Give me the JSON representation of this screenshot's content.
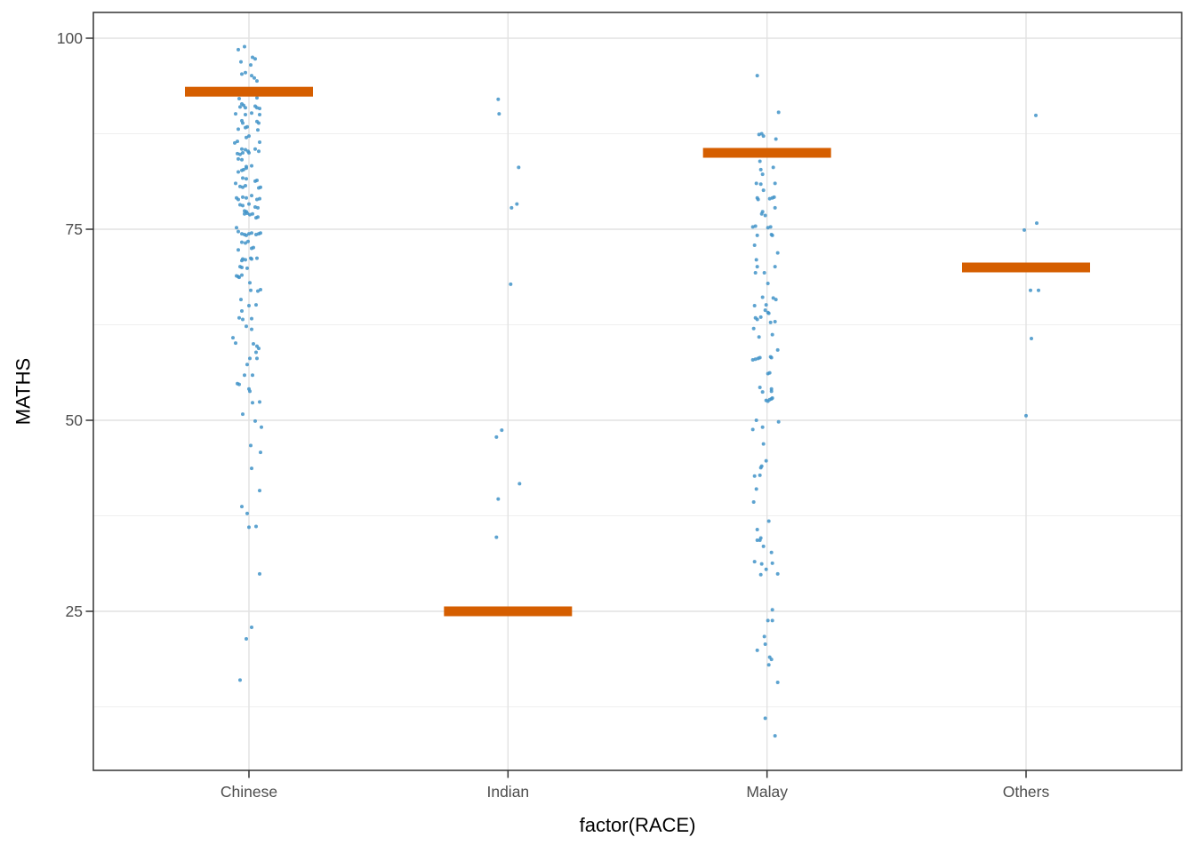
{
  "chart_data": {
    "type": "scatter",
    "title": "",
    "xlabel": "factor(RACE)",
    "ylabel": "MATHS",
    "categories": [
      "Chinese",
      "Indian",
      "Malay",
      "Others"
    ],
    "y_ticks": [
      25,
      50,
      75,
      100
    ],
    "y_minor_gridlines": [
      12.5,
      37.5,
      62.5,
      87.5
    ],
    "ylim": [
      4.2,
      103.4
    ],
    "grid": true,
    "legend_position": "none",
    "colors": {
      "point": "#4193C8",
      "crossbar": "#D55E00",
      "panel_border": "#333333",
      "tick_mark": "#333333",
      "tick_label": "#4D4D4D",
      "grid_major": "#E2E2E2",
      "grid_minor": "#EFEFEF",
      "background": "#FFFFFF"
    },
    "crossbars": [
      {
        "category": "Chinese",
        "value": 93
      },
      {
        "category": "Indian",
        "value": 25
      },
      {
        "category": "Malay",
        "value": 85
      },
      {
        "category": "Others",
        "value": 70
      }
    ],
    "series": [
      {
        "name": "Chinese",
        "points": [
          [
            -12,
            98.5
          ],
          [
            -5,
            98.9
          ],
          [
            -9,
            96.9
          ],
          [
            4,
            97.5
          ],
          [
            7,
            97.3
          ],
          [
            2,
            96.5
          ],
          [
            -8,
            95.3
          ],
          [
            -4,
            95.5
          ],
          [
            3,
            95.1
          ],
          [
            9,
            94.4
          ],
          [
            6,
            94.8
          ],
          [
            -11,
            92.1
          ],
          [
            9,
            92.2
          ],
          [
            -8,
            91.4
          ],
          [
            -6,
            91.2
          ],
          [
            -10,
            91.0
          ],
          [
            -4,
            90.9
          ],
          [
            7,
            91.1
          ],
          [
            9,
            90.9
          ],
          [
            12,
            90.8
          ],
          [
            -15,
            90.1
          ],
          [
            -4,
            90.0
          ],
          [
            3,
            90.2
          ],
          [
            12,
            90.0
          ],
          [
            -8,
            89.2
          ],
          [
            -7,
            88.9
          ],
          [
            9,
            89.1
          ],
          [
            11,
            88.9
          ],
          [
            -12,
            88.1
          ],
          [
            -4,
            88.3
          ],
          [
            -2,
            88.4
          ],
          [
            10,
            88.0
          ],
          [
            -3,
            87.0
          ],
          [
            0,
            87.2
          ],
          [
            12,
            86.4
          ],
          [
            -16,
            86.3
          ],
          [
            -13,
            86.5
          ],
          [
            -8,
            85.5
          ],
          [
            -4,
            85.4
          ],
          [
            -1,
            85.2
          ],
          [
            -7,
            85.0
          ],
          [
            7,
            85.5
          ],
          [
            11,
            85.2
          ],
          [
            -13,
            84.9
          ],
          [
            -10,
            84.8
          ],
          [
            0,
            85.0
          ],
          [
            -12,
            84.2
          ],
          [
            -8,
            84.1
          ],
          [
            -3,
            83.2
          ],
          [
            3,
            83.3
          ],
          [
            -3,
            83.0
          ],
          [
            -8,
            82.7
          ],
          [
            -6,
            82.8
          ],
          [
            -12,
            82.5
          ],
          [
            -7,
            81.7
          ],
          [
            -3,
            81.6
          ],
          [
            7,
            81.3
          ],
          [
            9,
            81.4
          ],
          [
            -15,
            81.0
          ],
          [
            -10,
            80.6
          ],
          [
            -7,
            80.5
          ],
          [
            -4,
            80.7
          ],
          [
            11,
            80.4
          ],
          [
            13,
            80.5
          ],
          [
            -14,
            79.1
          ],
          [
            -12,
            78.9
          ],
          [
            -7,
            79.2
          ],
          [
            -3,
            79.1
          ],
          [
            3,
            79.4
          ],
          [
            9,
            78.9
          ],
          [
            12,
            79.0
          ],
          [
            -10,
            78.2
          ],
          [
            -7,
            78.1
          ],
          [
            0,
            78.3
          ],
          [
            7,
            77.9
          ],
          [
            10,
            77.8
          ],
          [
            -5,
            77.4
          ],
          [
            -3,
            77.3
          ],
          [
            -5,
            77.0
          ],
          [
            -2,
            77.1
          ],
          [
            1,
            76.9
          ],
          [
            4,
            77.0
          ],
          [
            8,
            76.5
          ],
          [
            10,
            76.6
          ],
          [
            -14,
            75.2
          ],
          [
            -12,
            74.7
          ],
          [
            -8,
            74.4
          ],
          [
            -5,
            74.3
          ],
          [
            -3,
            74.2
          ],
          [
            0,
            74.4
          ],
          [
            3,
            74.5
          ],
          [
            8,
            74.3
          ],
          [
            11,
            74.4
          ],
          [
            13,
            74.5
          ],
          [
            -8,
            73.3
          ],
          [
            -4,
            73.2
          ],
          [
            -1,
            73.4
          ],
          [
            -12,
            72.3
          ],
          [
            3,
            72.5
          ],
          [
            5,
            72.6
          ],
          [
            -7,
            71.1
          ],
          [
            -4,
            71.0
          ],
          [
            -8,
            70.9
          ],
          [
            2,
            71.2
          ],
          [
            3,
            71.1
          ],
          [
            9,
            71.2
          ],
          [
            -10,
            70.1
          ],
          [
            -8,
            70.0
          ],
          [
            -2,
            69.9
          ],
          [
            -14,
            68.9
          ],
          [
            -12,
            68.8
          ],
          [
            -8,
            69.0
          ],
          [
            -11,
            68.7
          ],
          [
            1,
            68.0
          ],
          [
            2,
            67.0
          ],
          [
            10,
            66.9
          ],
          [
            13,
            67.1
          ],
          [
            -9,
            65.8
          ],
          [
            0,
            65.0
          ],
          [
            8,
            65.1
          ],
          [
            -8,
            64.3
          ],
          [
            -11,
            63.4
          ],
          [
            -7,
            63.2
          ],
          [
            3,
            63.3
          ],
          [
            -3,
            62.3
          ],
          [
            3,
            61.9
          ],
          [
            -15,
            60.1
          ],
          [
            -18,
            60.8
          ],
          [
            5,
            60.0
          ],
          [
            9,
            59.7
          ],
          [
            11,
            59.4
          ],
          [
            8,
            58.9
          ],
          [
            1,
            58.1
          ],
          [
            9,
            58.1
          ],
          [
            -2,
            57.3
          ],
          [
            -5,
            55.9
          ],
          [
            4,
            55.9
          ],
          [
            -13,
            54.8
          ],
          [
            -11,
            54.7
          ],
          [
            0,
            54.1
          ],
          [
            1,
            53.8
          ],
          [
            4,
            52.3
          ],
          [
            12,
            52.4
          ],
          [
            -7,
            50.8
          ],
          [
            7,
            49.9
          ],
          [
            14,
            49.1
          ],
          [
            2,
            46.7
          ],
          [
            13,
            45.8
          ],
          [
            3,
            43.7
          ],
          [
            12,
            40.8
          ],
          [
            -8,
            38.7
          ],
          [
            -2,
            37.8
          ],
          [
            0,
            36.0
          ],
          [
            8,
            36.1
          ],
          [
            12,
            29.9
          ],
          [
            3,
            22.9
          ],
          [
            -3,
            21.4
          ],
          [
            -10,
            16.0
          ]
        ]
      },
      {
        "name": "Indian",
        "points": [
          [
            -11,
            92.0
          ],
          [
            -10,
            90.1
          ],
          [
            12,
            83.1
          ],
          [
            10,
            78.3
          ],
          [
            4,
            77.8
          ],
          [
            3,
            67.8
          ],
          [
            -7,
            48.7
          ],
          [
            -13,
            47.8
          ],
          [
            13,
            41.7
          ],
          [
            -11,
            39.7
          ],
          [
            -13,
            34.7
          ]
        ]
      },
      {
        "name": "Malay",
        "points": [
          [
            -11,
            95.1
          ],
          [
            13,
            90.3
          ],
          [
            -9,
            87.4
          ],
          [
            -6,
            87.5
          ],
          [
            -4,
            87.2
          ],
          [
            10,
            86.8
          ],
          [
            -8,
            83.9
          ],
          [
            -7,
            82.8
          ],
          [
            7,
            83.1
          ],
          [
            -5,
            82.2
          ],
          [
            -12,
            81.0
          ],
          [
            -7,
            80.9
          ],
          [
            9,
            81.0
          ],
          [
            -4,
            80.1
          ],
          [
            -11,
            79.1
          ],
          [
            -10,
            78.9
          ],
          [
            3,
            79.0
          ],
          [
            6,
            79.1
          ],
          [
            8,
            79.2
          ],
          [
            9,
            77.8
          ],
          [
            -5,
            77.3
          ],
          [
            -6,
            77.0
          ],
          [
            -2,
            76.8
          ],
          [
            -16,
            75.3
          ],
          [
            -13,
            75.4
          ],
          [
            1,
            75.2
          ],
          [
            4,
            75.3
          ],
          [
            5,
            74.3
          ],
          [
            6,
            74.2
          ],
          [
            -11,
            74.2
          ],
          [
            -14,
            72.9
          ],
          [
            12,
            71.9
          ],
          [
            -12,
            71.0
          ],
          [
            -11,
            70.1
          ],
          [
            9,
            70.1
          ],
          [
            -13,
            69.3
          ],
          [
            -3,
            69.3
          ],
          [
            1,
            67.9
          ],
          [
            -5,
            66.1
          ],
          [
            7,
            66.0
          ],
          [
            10,
            65.8
          ],
          [
            -14,
            65.0
          ],
          [
            -1,
            65.1
          ],
          [
            -2,
            64.4
          ],
          [
            1,
            64.1
          ],
          [
            2,
            64.0
          ],
          [
            -13,
            63.4
          ],
          [
            -11,
            63.2
          ],
          [
            -7,
            63.5
          ],
          [
            4,
            62.8
          ],
          [
            9,
            62.9
          ],
          [
            -15,
            62.0
          ],
          [
            -9,
            60.9
          ],
          [
            6,
            61.2
          ],
          [
            12,
            59.2
          ],
          [
            4,
            58.3
          ],
          [
            5,
            58.2
          ],
          [
            -16,
            57.9
          ],
          [
            -13,
            58.0
          ],
          [
            -10,
            58.1
          ],
          [
            -8,
            58.2
          ],
          [
            1,
            56.1
          ],
          [
            3,
            56.2
          ],
          [
            -8,
            54.3
          ],
          [
            5,
            54.1
          ],
          [
            -5,
            53.7
          ],
          [
            5,
            53.8
          ],
          [
            -1,
            52.6
          ],
          [
            1,
            52.5
          ],
          [
            3,
            52.7
          ],
          [
            5,
            52.8
          ],
          [
            6,
            52.9
          ],
          [
            -12,
            50.0
          ],
          [
            13,
            49.8
          ],
          [
            -16,
            48.8
          ],
          [
            -5,
            49.1
          ],
          [
            -4,
            46.9
          ],
          [
            -1,
            44.7
          ],
          [
            -7,
            43.8
          ],
          [
            -6,
            44.0
          ],
          [
            -14,
            42.7
          ],
          [
            -8,
            42.8
          ],
          [
            -12,
            41.0
          ],
          [
            -15,
            39.3
          ],
          [
            2,
            36.8
          ],
          [
            -11,
            35.7
          ],
          [
            -11,
            34.3
          ],
          [
            -8,
            34.3
          ],
          [
            -7,
            34.6
          ],
          [
            -4,
            33.5
          ],
          [
            5,
            32.7
          ],
          [
            -14,
            31.5
          ],
          [
            -6,
            31.2
          ],
          [
            6,
            31.3
          ],
          [
            -1,
            30.5
          ],
          [
            -7,
            29.8
          ],
          [
            12,
            29.9
          ],
          [
            6,
            25.2
          ],
          [
            1,
            23.8
          ],
          [
            6,
            23.8
          ],
          [
            -3,
            21.7
          ],
          [
            -2,
            20.7
          ],
          [
            -11,
            19.9
          ],
          [
            3,
            19.0
          ],
          [
            5,
            18.7
          ],
          [
            2,
            18.0
          ],
          [
            12,
            15.7
          ],
          [
            -2,
            11.0
          ],
          [
            9,
            8.7
          ]
        ]
      },
      {
        "name": "Others",
        "points": [
          [
            11,
            89.9
          ],
          [
            12,
            75.8
          ],
          [
            -2,
            74.9
          ],
          [
            5,
            67.0
          ],
          [
            14,
            67.0
          ],
          [
            6,
            60.7
          ],
          [
            0,
            50.6
          ]
        ]
      }
    ]
  }
}
